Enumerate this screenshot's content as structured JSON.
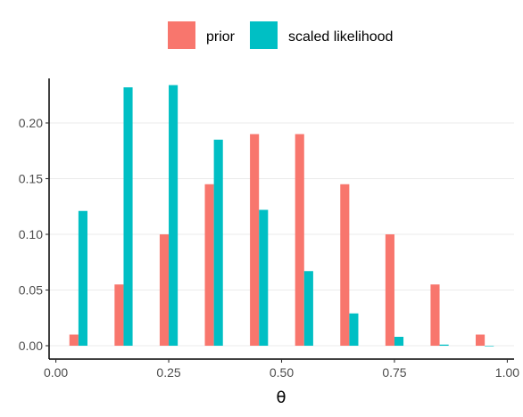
{
  "chart_data": {
    "type": "bar",
    "x": [
      0.05,
      0.15,
      0.25,
      0.35,
      0.45,
      0.55,
      0.65,
      0.75,
      0.85,
      0.95
    ],
    "series": [
      {
        "name": "prior",
        "color": "#F8766D",
        "values": [
          0.01,
          0.055,
          0.1,
          0.145,
          0.19,
          0.19,
          0.145,
          0.1,
          0.055,
          0.01
        ]
      },
      {
        "name": "scaled likelihood",
        "color": "#00BFC4",
        "values": [
          0.121,
          0.232,
          0.234,
          0.185,
          0.122,
          0.067,
          0.029,
          0.008,
          0.001,
          0.0
        ]
      }
    ],
    "xlabel": "θ",
    "ylabel": "",
    "xlim": [
      -0.015,
      1.015
    ],
    "ylim": [
      -0.012,
      0.24
    ],
    "x_ticks": [
      0.0,
      0.25,
      0.5,
      0.75,
      1.0
    ],
    "x_tick_labels": [
      "0.00",
      "0.25",
      "0.50",
      "0.75",
      "1.00"
    ],
    "y_ticks": [
      0.0,
      0.05,
      0.1,
      0.15,
      0.2
    ],
    "y_tick_labels": [
      "0.00",
      "0.05",
      "0.10",
      "0.15",
      "0.20"
    ],
    "grid": "horizontal",
    "legend_position": "top",
    "bar_width": 0.02
  }
}
